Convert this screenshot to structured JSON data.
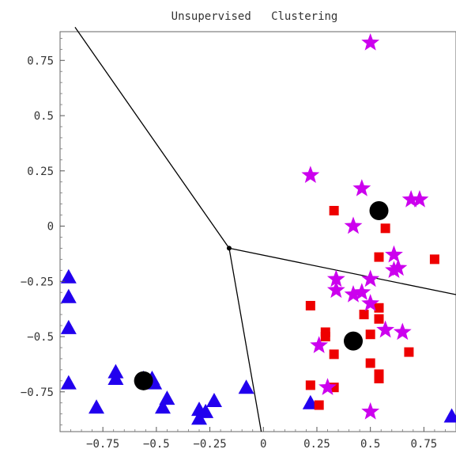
{
  "chart_data": {
    "type": "scatter",
    "title": "Unsupervised   Clustering",
    "xlabel": "",
    "ylabel": "",
    "xlim": [
      -0.95,
      0.9
    ],
    "ylim": [
      -0.93,
      0.88
    ],
    "x_ticks": [
      -0.75,
      -0.5,
      -0.25,
      0,
      0.25,
      0.5,
      0.75
    ],
    "x_tick_labels": [
      "−0.75",
      "−0.5",
      "−0.25",
      "0",
      "0.25",
      "0.5",
      "0.75"
    ],
    "y_ticks": [
      0.75,
      0.5,
      0.25,
      0,
      -0.25,
      -0.5,
      -0.75
    ],
    "y_tick_labels": [
      "0.75",
      "0.5",
      "0.25",
      "0",
      "−0.25",
      "−0.5",
      "−0.75"
    ],
    "grid": false,
    "legend": "none",
    "series": [
      {
        "marker": "triangle",
        "color": "#2200ee",
        "points": [
          [
            -0.91,
            -0.23
          ],
          [
            -0.91,
            -0.32
          ],
          [
            -0.91,
            -0.46
          ],
          [
            -0.91,
            -0.71
          ],
          [
            -0.78,
            -0.82
          ],
          [
            -0.69,
            -0.66
          ],
          [
            -0.69,
            -0.69
          ],
          [
            -0.56,
            -0.69
          ],
          [
            -0.52,
            -0.69
          ],
          [
            -0.51,
            -0.71
          ],
          [
            -0.47,
            -0.82
          ],
          [
            -0.45,
            -0.78
          ],
          [
            -0.3,
            -0.83
          ],
          [
            -0.3,
            -0.87
          ],
          [
            -0.27,
            -0.84
          ],
          [
            -0.23,
            -0.79
          ],
          [
            -0.08,
            -0.73
          ],
          [
            0.22,
            -0.8
          ],
          [
            0.88,
            -0.86
          ]
        ]
      },
      {
        "marker": "square",
        "color": "#ee0000",
        "points": [
          [
            0.33,
            0.07
          ],
          [
            0.57,
            -0.01
          ],
          [
            0.54,
            -0.14
          ],
          [
            0.8,
            -0.15
          ],
          [
            0.22,
            -0.36
          ],
          [
            0.47,
            -0.4
          ],
          [
            0.54,
            -0.37
          ],
          [
            0.54,
            -0.42
          ],
          [
            0.29,
            -0.48
          ],
          [
            0.29,
            -0.5
          ],
          [
            0.5,
            -0.49
          ],
          [
            0.33,
            -0.58
          ],
          [
            0.68,
            -0.57
          ],
          [
            0.5,
            -0.62
          ],
          [
            0.54,
            -0.67
          ],
          [
            0.54,
            -0.69
          ],
          [
            0.22,
            -0.72
          ],
          [
            0.33,
            -0.73
          ],
          [
            0.26,
            -0.81
          ]
        ]
      },
      {
        "marker": "star",
        "color": "#cc00ee",
        "points": [
          [
            0.5,
            0.83
          ],
          [
            0.22,
            0.23
          ],
          [
            0.46,
            0.17
          ],
          [
            0.69,
            0.12
          ],
          [
            0.73,
            0.12
          ],
          [
            0.42,
            0.0
          ],
          [
            0.61,
            -0.13
          ],
          [
            0.63,
            -0.19
          ],
          [
            0.61,
            -0.2
          ],
          [
            0.34,
            -0.24
          ],
          [
            0.5,
            -0.24
          ],
          [
            0.34,
            -0.29
          ],
          [
            0.42,
            -0.31
          ],
          [
            0.46,
            -0.3
          ],
          [
            0.5,
            -0.35
          ],
          [
            0.57,
            -0.47
          ],
          [
            0.65,
            -0.48
          ],
          [
            0.26,
            -0.54
          ],
          [
            0.3,
            -0.73
          ],
          [
            0.5,
            -0.84
          ]
        ]
      }
    ],
    "centroids": {
      "marker": "circle",
      "color": "#000000",
      "points": [
        [
          -0.56,
          -0.7
        ],
        [
          0.54,
          0.07
        ],
        [
          0.42,
          -0.52
        ]
      ]
    },
    "voronoi": {
      "color": "#000000",
      "vertex": [
        -0.16,
        -0.1
      ],
      "segments": [
        [
          [
            -0.16,
            -0.1
          ],
          [
            -0.88,
            0.9
          ]
        ],
        [
          [
            -0.16,
            -0.1
          ],
          [
            0.9,
            -0.31
          ]
        ],
        [
          [
            -0.16,
            -0.1
          ],
          [
            -0.01,
            -0.93
          ]
        ]
      ]
    }
  }
}
